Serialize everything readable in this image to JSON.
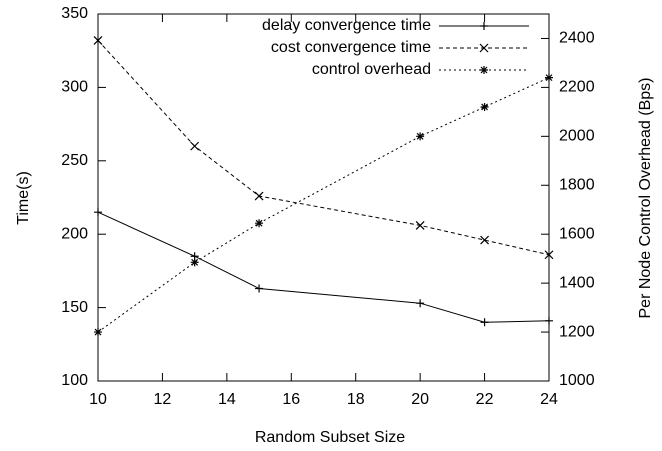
{
  "chart_data": {
    "type": "line",
    "xlabel": "Random Subset Size",
    "ylabel": "Time(s)",
    "y2label": "Per Node Control Overhead (Bps)",
    "x": [
      10,
      13,
      15,
      20,
      22,
      24
    ],
    "xlim": [
      10,
      24
    ],
    "xticks": [
      10,
      12,
      14,
      16,
      18,
      20,
      22,
      24
    ],
    "ylim": [
      100,
      350
    ],
    "yticks": [
      100,
      150,
      200,
      250,
      300,
      350
    ],
    "y2lim": [
      1000,
      2500
    ],
    "y2ticks": [
      1000,
      1200,
      1400,
      1600,
      1800,
      2000,
      2200,
      2400
    ],
    "legend": "top-right",
    "series": [
      {
        "name": "delay convergence time",
        "color": "#000000",
        "marker": "plus",
        "dash": "solid",
        "values": [
          215,
          185,
          163,
          153,
          140,
          141
        ]
      },
      {
        "name": "cost convergence time",
        "color": "#000000",
        "marker": "cross",
        "dash": "dashed",
        "values": [
          332,
          260,
          226,
          206,
          196,
          186
        ]
      },
      {
        "name": "control overhead",
        "color": "#000000",
        "marker": "star",
        "dash": "dotted",
        "axis": "y2",
        "values": [
          1200,
          1485,
          1645,
          2000,
          2120,
          2240
        ]
      }
    ]
  }
}
